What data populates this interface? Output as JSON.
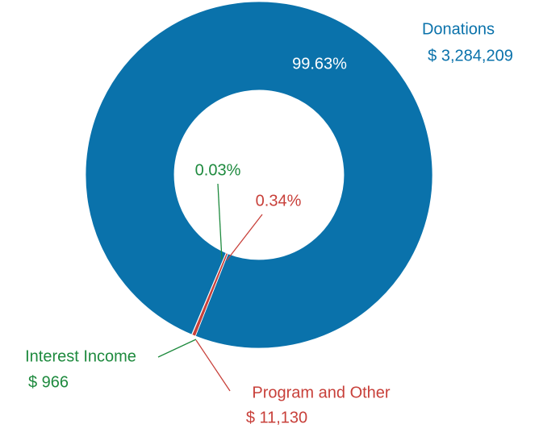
{
  "chart_data": {
    "type": "pie",
    "categories": [
      "Donations",
      "Interest Income",
      "Program and Other"
    ],
    "values": [
      99.63,
      0.03,
      0.34
    ],
    "value_labels": [
      "99.63%",
      "0.03%",
      "0.34%"
    ],
    "amount_labels": [
      "$ 3,284,209",
      "$ 966",
      "$ 11,130"
    ],
    "colors": [
      "#0a72ab",
      "#1e8a3e",
      "#c8403a"
    ]
  }
}
